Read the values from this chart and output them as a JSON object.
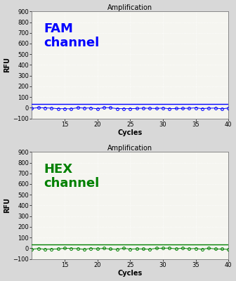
{
  "title": "Amplification",
  "xlabel": "Cycles",
  "ylabel": "RFU",
  "ylim": [
    -100,
    900
  ],
  "yticks": [
    -100,
    0,
    100,
    200,
    300,
    400,
    500,
    600,
    700,
    800,
    900
  ],
  "xlim": [
    10,
    40
  ],
  "xticks": [
    15,
    20,
    25,
    30,
    35,
    40
  ],
  "x_start": 10,
  "x_end": 40,
  "fam_label": "FAM\nchannel",
  "fam_color": "#0000FF",
  "fam_line_y": 32,
  "fam_data_y": -5,
  "hex_label": "HEX\nchannel",
  "hex_color": "#008000",
  "hex_line_y": 37,
  "hex_data_y": -5,
  "background_color": "#f5f5f0",
  "fig_background_color": "#d8d8d8",
  "title_fontsize": 7,
  "label_fontsize": 7,
  "tick_fontsize": 6,
  "channel_fontsize": 13,
  "grid_color": "#ffffff",
  "grid_linestyle": "dotted",
  "border_color": "#888888"
}
